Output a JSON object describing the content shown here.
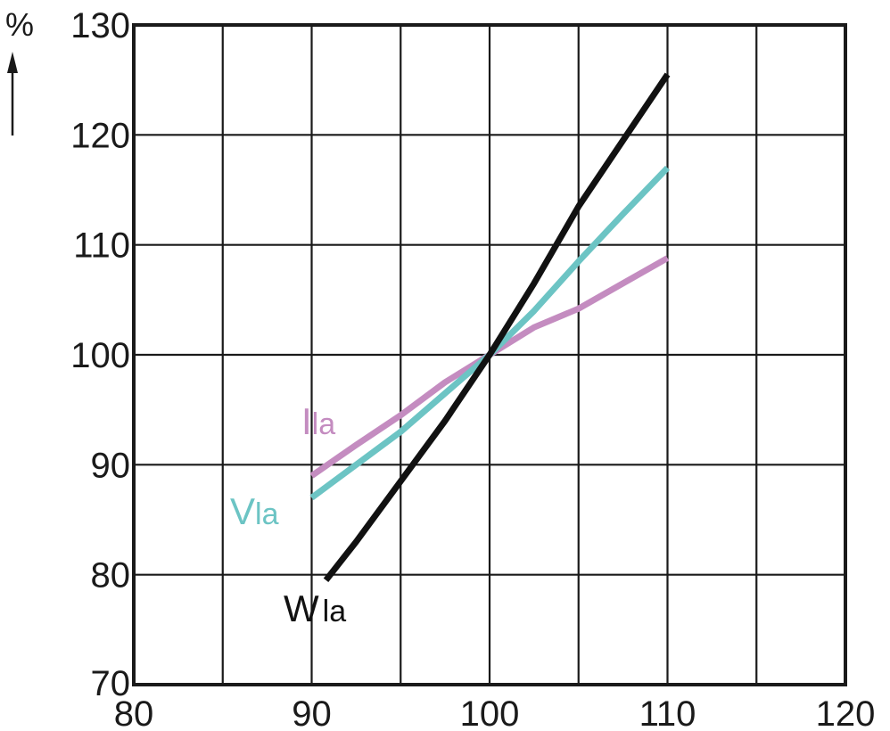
{
  "chart_data": {
    "type": "line",
    "title": "",
    "xlabel": "",
    "ylabel": "%",
    "xlim": [
      80,
      120
    ],
    "ylim": [
      70,
      130
    ],
    "x_ticks": [
      80,
      90,
      100,
      110,
      120
    ],
    "y_ticks": [
      70,
      80,
      90,
      100,
      110,
      120,
      130
    ],
    "x_grid_step": 5,
    "y_grid_step": 10,
    "grid": true,
    "legend": "none (series labeled inline at left end of lines)",
    "series": [
      {
        "name_main": "I",
        "name_sub": "la",
        "color": "#c48cc0",
        "x": [
          90,
          92.5,
          95,
          97.5,
          100,
          102.5,
          105,
          107.5,
          110
        ],
        "y": [
          89,
          91.8,
          94.5,
          97.5,
          100,
          102.5,
          104.2,
          106.5,
          108.8
        ]
      },
      {
        "name_main": "V",
        "name_sub": "la",
        "color": "#6cc4c4",
        "x": [
          90,
          92.5,
          95,
          97.5,
          100,
          102.5,
          105,
          107.5,
          110
        ],
        "y": [
          87,
          90,
          93,
          96.5,
          100,
          104,
          108.5,
          112.8,
          117
        ]
      },
      {
        "name_main": "W",
        "name_sub": "la",
        "color": "#111111",
        "x": [
          90.8,
          92.5,
          95,
          97.5,
          100,
          102.5,
          105,
          107.5,
          110
        ],
        "y": [
          79.5,
          83,
          88.5,
          94,
          100,
          106.5,
          113.5,
          119.5,
          125.5
        ]
      }
    ]
  }
}
